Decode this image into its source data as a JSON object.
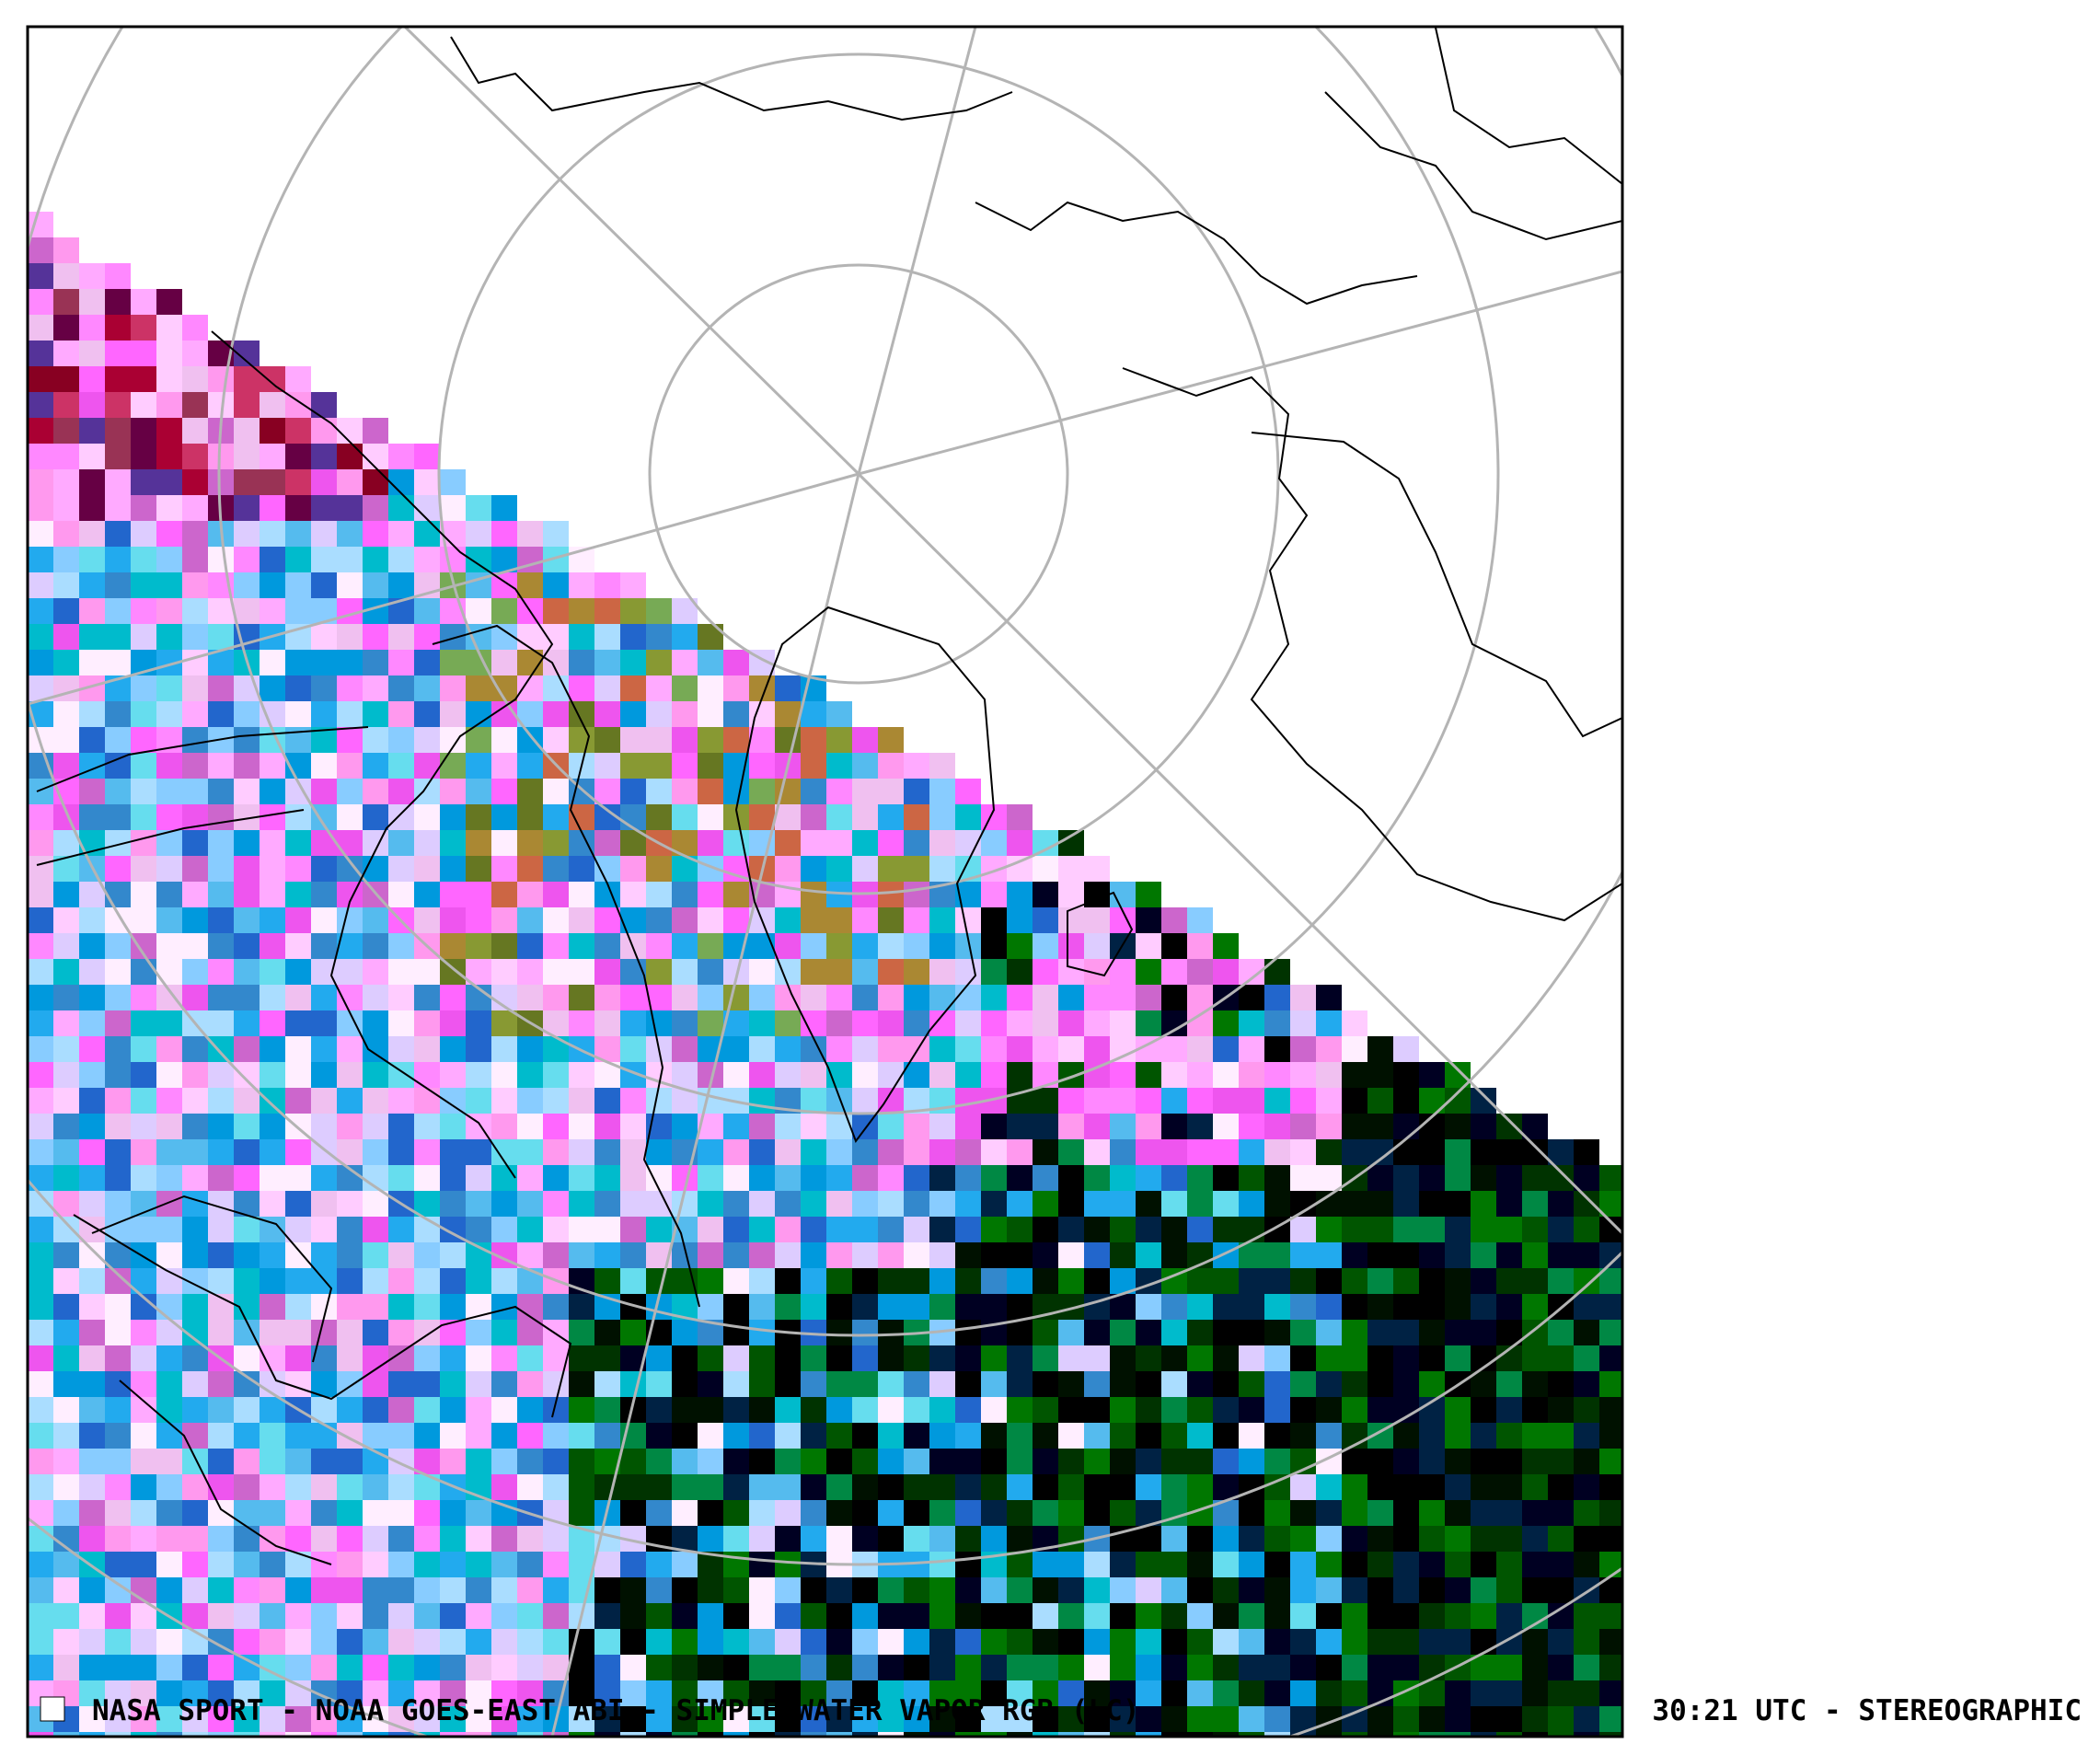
{
  "caption": {
    "left": "NASA SPORT  -  NOAA GOES-EAST ABI  -  SIMPLE WATER VAPOR RGB (LC)",
    "right": "30:21 UTC - STEREOGRAPHIC"
  }
}
